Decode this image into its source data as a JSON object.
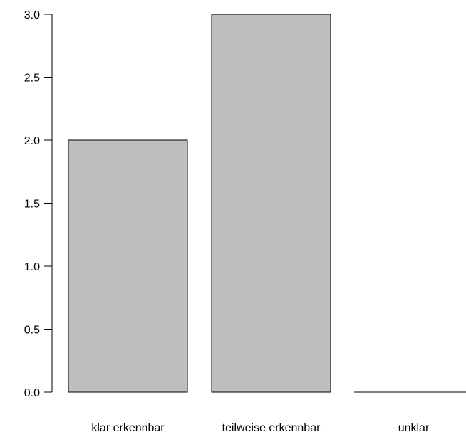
{
  "chart_data": {
    "type": "bar",
    "categories": [
      "klar erkennbar",
      "teilweise erkennbar",
      "unklar"
    ],
    "values": [
      2,
      3,
      0
    ],
    "title": "",
    "xlabel": "",
    "ylabel": "",
    "ylim": [
      0,
      3
    ],
    "yticks": [
      "0.0",
      "0.5",
      "1.0",
      "1.5",
      "2.0",
      "2.5",
      "3.0"
    ],
    "grid": false,
    "colors": {
      "bar_fill": "#bebebe",
      "bar_stroke": "#000000",
      "axis": "#000000"
    }
  }
}
